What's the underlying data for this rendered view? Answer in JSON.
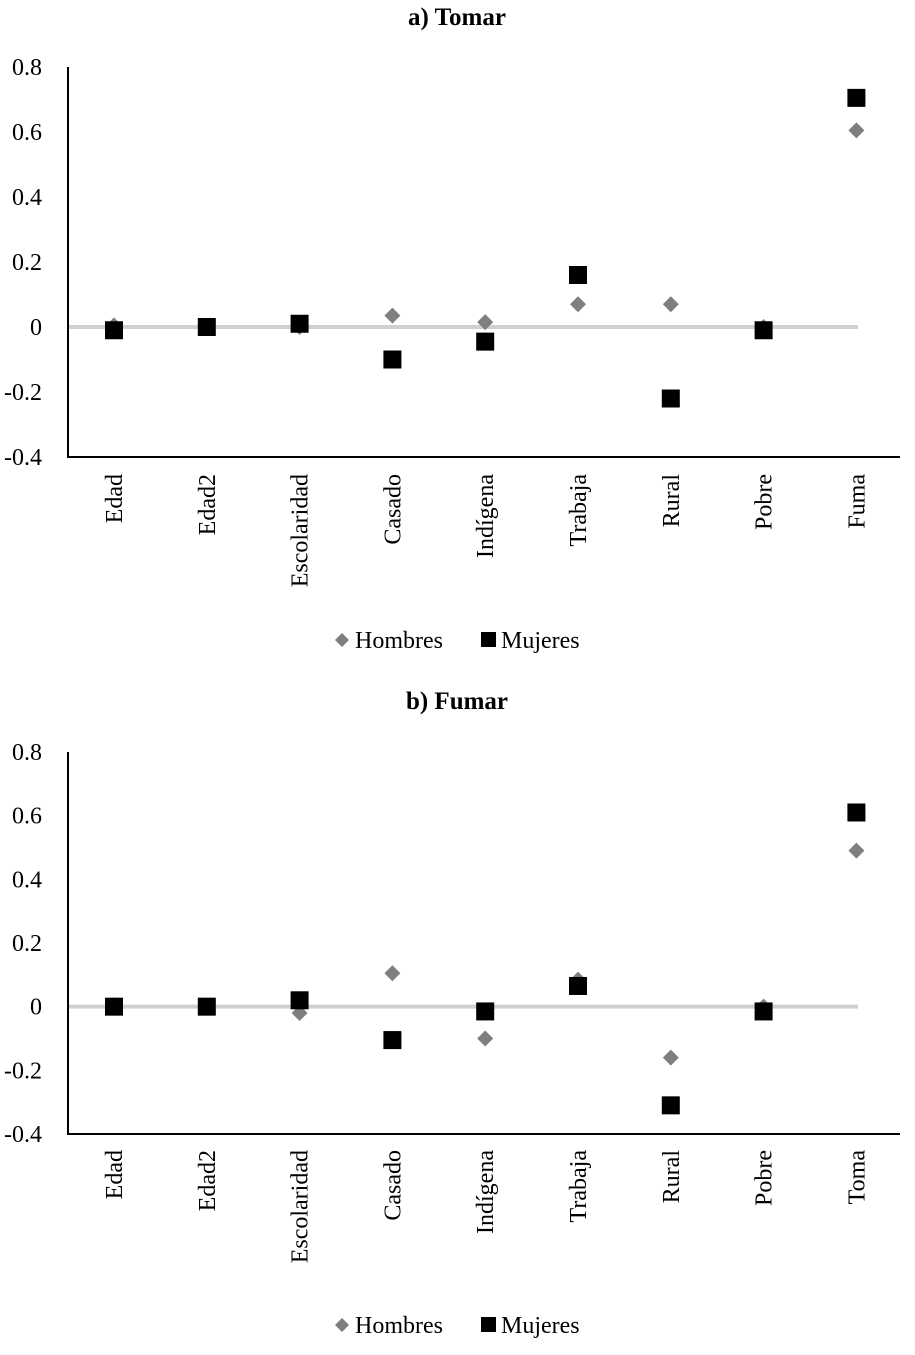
{
  "colors": {
    "hombres": "#7f7f7f",
    "mujeres": "#000000",
    "zero_line": "#d0d0d0",
    "axis": "#000000"
  },
  "legend": {
    "hombres_icon": "diamond-marker",
    "mujeres_icon": "square-marker"
  },
  "chart_data": [
    {
      "type": "scatter",
      "title": "a) Tomar",
      "xlabel": "",
      "ylabel": "",
      "ylim": [
        -0.4,
        0.8
      ],
      "yticks": [
        "0.8",
        "0.6",
        "0.4",
        "0.2",
        "0",
        "-0.2",
        "-0.4"
      ],
      "yticks_values": [
        0.8,
        0.6,
        0.4,
        0.2,
        0,
        -0.2,
        -0.4
      ],
      "categories": [
        "Edad",
        "Edad2",
        "Escolaridad",
        "Casado",
        "Indígena",
        "Trabaja",
        "Rural",
        "Pobre",
        "Fuma"
      ],
      "series": [
        {
          "name": "Hombres",
          "marker": "diamond",
          "values": [
            0.005,
            0.0,
            0.0,
            0.035,
            0.015,
            0.07,
            0.07,
            0.0,
            0.605
          ]
        },
        {
          "name": "Mujeres",
          "marker": "square",
          "values": [
            -0.01,
            0.0,
            0.01,
            -0.1,
            -0.045,
            0.16,
            -0.22,
            -0.01,
            0.705
          ]
        }
      ],
      "grid": false,
      "legend_position": "bottom"
    },
    {
      "type": "scatter",
      "title": "b) Fumar",
      "xlabel": "",
      "ylabel": "",
      "ylim": [
        -0.4,
        0.8
      ],
      "yticks": [
        "0.8",
        "0.6",
        "0.4",
        "0.2",
        "0",
        "-0.2",
        "-0.4"
      ],
      "yticks_values": [
        0.8,
        0.6,
        0.4,
        0.2,
        0,
        -0.2,
        -0.4
      ],
      "categories": [
        "Edad",
        "Edad2",
        "Escolaridad",
        "Casado",
        "Indígena",
        "Trabaja",
        "Rural",
        "Pobre",
        "Toma"
      ],
      "series": [
        {
          "name": "Hombres",
          "marker": "diamond",
          "values": [
            0.005,
            0.0,
            -0.02,
            0.105,
            -0.1,
            0.085,
            -0.16,
            0.0,
            0.49
          ]
        },
        {
          "name": "Mujeres",
          "marker": "square",
          "values": [
            0.0,
            0.0,
            0.02,
            -0.105,
            -0.015,
            0.065,
            -0.31,
            -0.015,
            0.61
          ]
        }
      ],
      "grid": false,
      "legend_position": "bottom"
    }
  ]
}
